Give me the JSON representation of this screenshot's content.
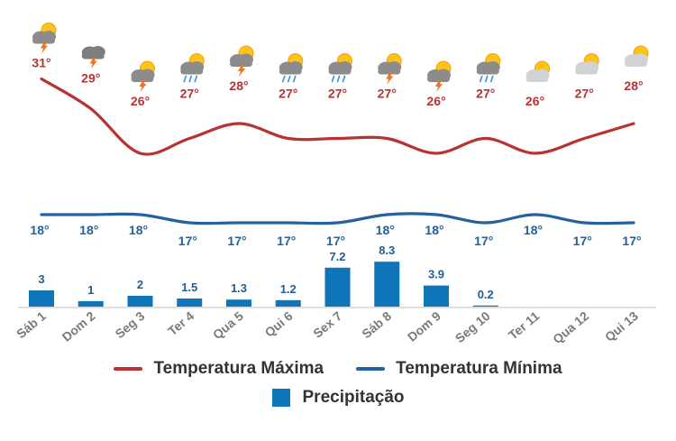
{
  "chart_data": {
    "type": "line+bar",
    "days": [
      "Sáb 1",
      "Dom 2",
      "Seg 3",
      "Ter 4",
      "Qua 5",
      "Qui 6",
      "Sex 7",
      "Sáb 8",
      "Dom 9",
      "Seg 10",
      "Ter 11",
      "Qua 12",
      "Qui 13"
    ],
    "icons": [
      "sun-cloud-thunder-icon",
      "cloud-thunder-icon",
      "sun-cloud-thunder-icon",
      "sun-cloud-rain-icon",
      "sun-cloud-thunder-icon",
      "sun-cloud-rain-icon",
      "sun-cloud-rain-icon",
      "sun-cloud-thunder-icon",
      "sun-cloud-thunder-icon",
      "sun-cloud-rain-icon",
      "sun-cloud-icon",
      "sun-cloud-icon",
      "sun-cloud-icon"
    ],
    "series": [
      {
        "name": "Temperatura Máxima",
        "unit": "°",
        "color": "#b83232",
        "values": [
          31,
          29,
          26,
          27,
          28,
          27,
          27,
          27,
          26,
          27,
          26,
          27,
          28
        ]
      },
      {
        "name": "Temperatura Mínima",
        "unit": "°",
        "color": "#23619f",
        "values": [
          18,
          18,
          18,
          17,
          17,
          17,
          17,
          18,
          18,
          17,
          18,
          17,
          17
        ]
      },
      {
        "name": "Precipitação",
        "color": "#0f75b9",
        "values": [
          3,
          1,
          2,
          1.5,
          1.3,
          1.2,
          7.2,
          8.3,
          3.9,
          0.2,
          0,
          0,
          0
        ],
        "labels": [
          "3",
          "1",
          "2",
          "1.5",
          "1.3",
          "1.2",
          "7.2",
          "8.3",
          "3.9",
          "0.2",
          "",
          "",
          ""
        ]
      }
    ],
    "precip_ylim": [
      0,
      8.3
    ],
    "legend_position": "bottom",
    "grid": false
  },
  "legend": {
    "max_label": "Temperatura Máxima",
    "min_label": "Temperatura Mínima",
    "precip_label": "Precipitação"
  }
}
